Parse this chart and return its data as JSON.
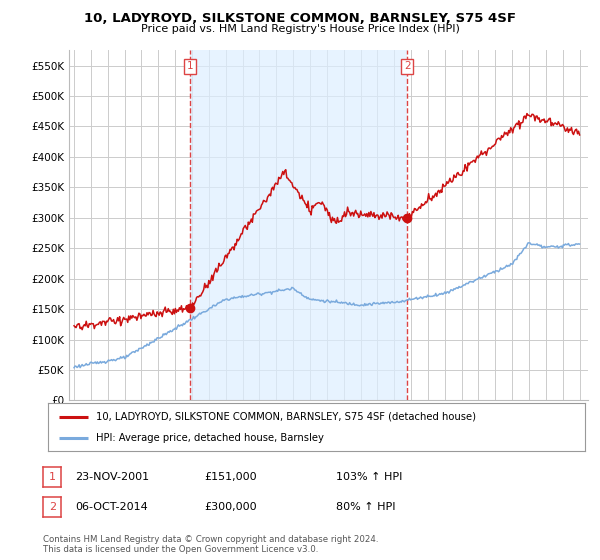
{
  "title": "10, LADYROYD, SILKSTONE COMMON, BARNSLEY, S75 4SF",
  "subtitle": "Price paid vs. HM Land Registry's House Price Index (HPI)",
  "ylim": [
    0,
    575000
  ],
  "yticks": [
    0,
    50000,
    100000,
    150000,
    200000,
    250000,
    300000,
    350000,
    400000,
    450000,
    500000,
    550000
  ],
  "ytick_labels": [
    "£0",
    "£50K",
    "£100K",
    "£150K",
    "£200K",
    "£250K",
    "£300K",
    "£350K",
    "£400K",
    "£450K",
    "£500K",
    "£550K"
  ],
  "background_color": "#ffffff",
  "grid_color": "#cccccc",
  "hpi_color": "#7aaadd",
  "price_color": "#cc1111",
  "vline_color": "#dd4444",
  "shade_color": "#ddeeff",
  "sale1_t": 2001.9,
  "sale1_price": 151000,
  "sale2_t": 2014.77,
  "sale2_price": 300000,
  "sale1_date_str": "23-NOV-2001",
  "sale1_price_str": "£151,000",
  "sale1_hpi_str": "103% ↑ HPI",
  "sale2_date_str": "06-OCT-2014",
  "sale2_price_str": "£300,000",
  "sale2_hpi_str": "80% ↑ HPI",
  "legend_label_price": "10, LADYROYD, SILKSTONE COMMON, BARNSLEY, S75 4SF (detached house)",
  "legend_label_hpi": "HPI: Average price, detached house, Barnsley",
  "footer": "Contains HM Land Registry data © Crown copyright and database right 2024.\nThis data is licensed under the Open Government Licence v3.0."
}
